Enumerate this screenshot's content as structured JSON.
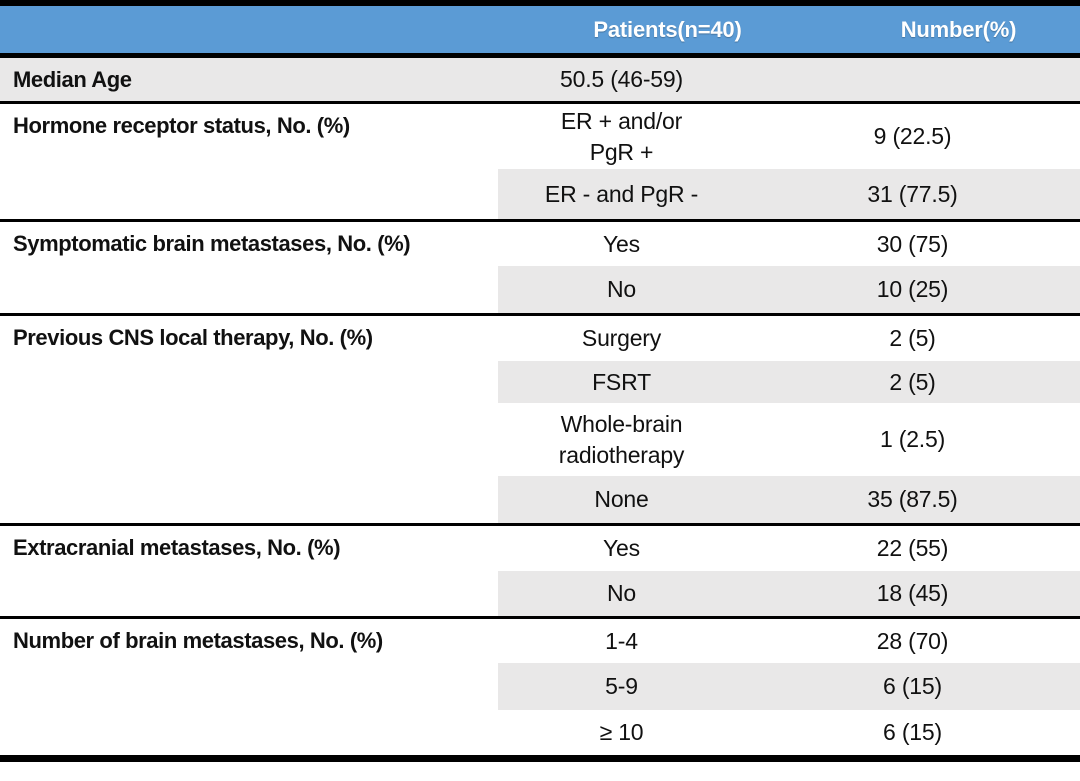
{
  "header": {
    "patients": "Patients(n=40)",
    "number": "Number(%)"
  },
  "colors": {
    "header_bg": "#5b9bd5",
    "header_text": "#ffffff",
    "stripe": "#e9e8e8",
    "rule": "#000000",
    "body_text": "#111111"
  },
  "sections": [
    {
      "label": "Median Age",
      "rows": [
        {
          "value": "50.5 (46-59)",
          "number": ""
        }
      ]
    },
    {
      "label": "Hormone receptor status, No. (%)",
      "rows": [
        {
          "value": "ER + and/or\nPgR +",
          "number": "9 (22.5)"
        },
        {
          "value": "ER - and PgR -",
          "number": "31 (77.5)"
        }
      ]
    },
    {
      "label": "Symptomatic brain metastases, No. (%)",
      "rows": [
        {
          "value": "Yes",
          "number": "30 (75)"
        },
        {
          "value": "No",
          "number": "10 (25)"
        }
      ]
    },
    {
      "label": "Previous CNS local therapy, No. (%)",
      "rows": [
        {
          "value": "Surgery",
          "number": "2 (5)"
        },
        {
          "value": "FSRT",
          "number": "2 (5)"
        },
        {
          "value": "Whole-brain\nradiotherapy",
          "number": "1 (2.5)"
        },
        {
          "value": "None",
          "number": "35 (87.5)"
        }
      ]
    },
    {
      "label": "Extracranial metastases, No. (%)",
      "rows": [
        {
          "value": "Yes",
          "number": "22 (55)"
        },
        {
          "value": "No",
          "number": "18 (45)"
        }
      ]
    },
    {
      "label": "Number of brain metastases, No. (%)",
      "rows": [
        {
          "value": "1-4",
          "number": "28 (70)"
        },
        {
          "value": "5-9",
          "number": "6 (15)"
        },
        {
          "value": "≥ 10",
          "number": "6 (15)"
        }
      ]
    }
  ]
}
